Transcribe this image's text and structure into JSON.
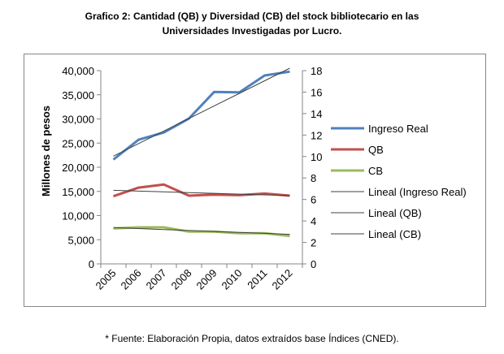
{
  "title": {
    "line1": "Grafico 2: Cantidad (QB) y Diversidad (CB) del stock bibliotecario en las",
    "line2": "Universidades Investigadas por Lucro."
  },
  "footnote": "* Fuente: Elaboración Propia, datos extraídos base Índices (CNED).",
  "chart_data": {
    "type": "line",
    "ylabel": "Millones de pesos",
    "x": [
      "2005",
      "2006",
      "2007",
      "2008",
      "2009",
      "2010",
      "2011",
      "2012"
    ],
    "y_left": {
      "ylim": [
        0,
        40000
      ],
      "ticks": [
        "0",
        "5,000",
        "10,000",
        "15,000",
        "20,000",
        "25,000",
        "30,000",
        "35,000",
        "40,000"
      ]
    },
    "y_right": {
      "ylim": [
        0,
        18
      ],
      "ticks": [
        "0",
        "2",
        "4",
        "6",
        "8",
        "10",
        "12",
        "14",
        "16",
        "18"
      ]
    },
    "series": [
      {
        "name": "Ingreso Real",
        "axis": "left",
        "color": "#4f81bd",
        "values": [
          21600,
          25700,
          27200,
          30100,
          35600,
          35500,
          39000,
          39800
        ]
      },
      {
        "name": "QB",
        "axis": "right",
        "color": "#c0504d",
        "values": [
          6.3,
          7.1,
          7.4,
          6.35,
          6.45,
          6.4,
          6.55,
          6.35
        ]
      },
      {
        "name": "CB",
        "axis": "right",
        "color": "#9bbb59",
        "values": [
          3.3,
          3.4,
          3.4,
          3.0,
          3.0,
          2.85,
          2.85,
          2.6
        ]
      },
      {
        "name": "Lineal (Ingreso Real)",
        "axis": "left",
        "color": "#404040",
        "trend": true,
        "values": [
          22300,
          24900,
          27500,
          30100,
          32700,
          35300,
          37900,
          40500
        ]
      },
      {
        "name": "Lineal (QB)",
        "axis": "right",
        "color": "#404040",
        "trend": true,
        "values": [
          6.85,
          6.78,
          6.71,
          6.64,
          6.57,
          6.5,
          6.43,
          6.36
        ]
      },
      {
        "name": "Lineal (CB)",
        "axis": "right",
        "color": "#404040",
        "trend": true,
        "values": [
          3.38,
          3.29,
          3.2,
          3.11,
          3.02,
          2.93,
          2.84,
          2.75
        ]
      }
    ],
    "legend_position": "right",
    "grid": false
  }
}
